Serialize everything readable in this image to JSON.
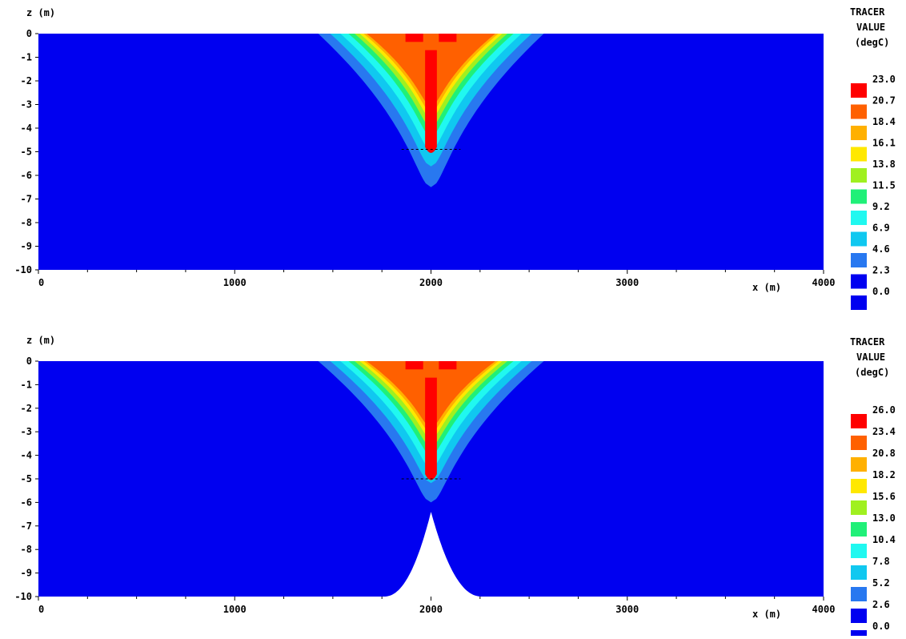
{
  "chart_data": [
    {
      "type": "contour",
      "ylabel": "z (m)",
      "xlabel": "x (m)",
      "xlim": [
        0,
        4000
      ],
      "ylim": [
        -10,
        0
      ],
      "x_ticks": [
        0,
        1000,
        2000,
        3000,
        4000
      ],
      "y_ticks": [
        0,
        -1,
        -2,
        -3,
        -4,
        -5,
        -6,
        -7,
        -8,
        -9,
        -10
      ],
      "legend": {
        "title": [
          "TRACER",
          "VALUE",
          "(degC)"
        ],
        "levels": [
          "23.0",
          "20.7",
          "18.4",
          "16.1",
          "13.8",
          "11.5",
          "9.2",
          "6.9",
          "4.6",
          "2.3",
          "0.0"
        ],
        "colors": [
          "#ff0000",
          "#ff6000",
          "#ffb000",
          "#ffe800",
          "#a0f020",
          "#20f078",
          "#20f8f0",
          "#10c8f0",
          "#2878f0",
          "#0000f0",
          "#0000f0"
        ]
      },
      "field": {
        "source_x": 2000,
        "core_depth": -5,
        "plume_extent_depth": -6.5,
        "surface_half_width": 450,
        "dashed_line": {
          "x": [
            1850,
            2150
          ],
          "z": -4.9
        }
      },
      "obstacle": null
    },
    {
      "type": "contour",
      "ylabel": "z (m)",
      "xlabel": "x (m)",
      "xlim": [
        0,
        4000
      ],
      "ylim": [
        -10,
        0
      ],
      "x_ticks": [
        0,
        1000,
        2000,
        3000,
        4000
      ],
      "y_ticks": [
        0,
        -1,
        -2,
        -3,
        -4,
        -5,
        -6,
        -7,
        -8,
        -9,
        -10
      ],
      "legend": {
        "title": [
          "TRACER",
          "VALUE",
          "(degC)"
        ],
        "levels": [
          "26.0",
          "23.4",
          "20.8",
          "18.2",
          "15.6",
          "13.0",
          "10.4",
          "7.8",
          "5.2",
          "2.6",
          "0.0"
        ],
        "colors": [
          "#ff0000",
          "#ff6000",
          "#ffb000",
          "#ffe800",
          "#a0f020",
          "#20f078",
          "#20f8f0",
          "#10c8f0",
          "#2878f0",
          "#0000f0",
          "#0000f0"
        ]
      },
      "field": {
        "source_x": 2000,
        "core_depth": -5,
        "plume_extent_depth": -6.0,
        "surface_half_width": 450,
        "dashed_line": {
          "x": [
            1850,
            2150
          ],
          "z": -5.0
        }
      },
      "obstacle": {
        "peak_x": 2000,
        "peak_z": -6.4,
        "base_x": [
          1760,
          2260
        ],
        "base_z": -10
      }
    }
  ]
}
